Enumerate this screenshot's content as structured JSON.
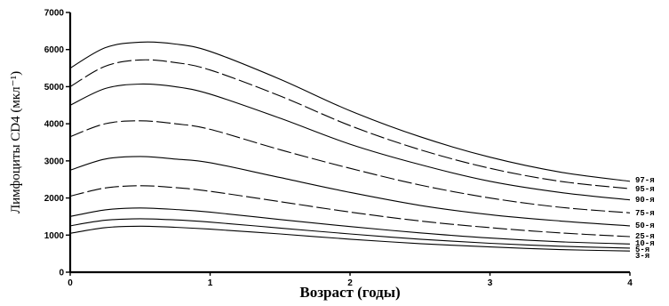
{
  "chart_data": {
    "type": "line",
    "xlabel": "Возраст (годы)",
    "ylabel": "Лимфоциты CD4 (мкл⁻¹)",
    "xlim": [
      0,
      4
    ],
    "ylim": [
      0,
      7000
    ],
    "xticks": [
      0,
      1,
      2,
      3,
      4
    ],
    "xtick_labels": [
      "0",
      "1",
      "2",
      "3",
      "4"
    ],
    "yticks": [
      0,
      1000,
      2000,
      3000,
      4000,
      5000,
      6000,
      7000
    ],
    "ytick_labels": [
      "0",
      "1000",
      "2000",
      "3000",
      "4000",
      "5000",
      "6000",
      "7000"
    ],
    "grid": false,
    "x": [
      0,
      0.25,
      0.5,
      0.75,
      1,
      1.5,
      2,
      2.5,
      3,
      3.5,
      4
    ],
    "series": [
      {
        "name": "97-я",
        "values": [
          5500,
          6050,
          6200,
          6150,
          5950,
          5200,
          4350,
          3650,
          3100,
          2700,
          2450
        ],
        "dash": "none"
      },
      {
        "name": "95-я",
        "values": [
          5000,
          5550,
          5720,
          5650,
          5450,
          4750,
          3950,
          3300,
          2800,
          2450,
          2250
        ],
        "dash": "16 4"
      },
      {
        "name": "90-я",
        "values": [
          4500,
          4950,
          5070,
          5000,
          4800,
          4150,
          3450,
          2900,
          2450,
          2150,
          1950
        ],
        "dash": "none"
      },
      {
        "name": "75-я",
        "values": [
          3650,
          4000,
          4080,
          4000,
          3850,
          3300,
          2800,
          2350,
          2000,
          1750,
          1600
        ],
        "dash": "16 4"
      },
      {
        "name": "50-я",
        "values": [
          2750,
          3050,
          3120,
          3050,
          2950,
          2550,
          2150,
          1800,
          1550,
          1380,
          1250
        ],
        "dash": "none"
      },
      {
        "name": "25-я",
        "values": [
          2050,
          2270,
          2330,
          2280,
          2180,
          1900,
          1620,
          1380,
          1200,
          1060,
          960
        ],
        "dash": "16 4"
      },
      {
        "name": "10-я",
        "values": [
          1500,
          1680,
          1730,
          1690,
          1620,
          1420,
          1230,
          1060,
          920,
          820,
          760
        ],
        "dash": "none"
      },
      {
        "name": "5-я",
        "values": [
          1250,
          1400,
          1440,
          1410,
          1350,
          1190,
          1030,
          890,
          780,
          700,
          650
        ],
        "dash": "none"
      },
      {
        "name": "3-я",
        "values": [
          1050,
          1200,
          1240,
          1210,
          1160,
          1030,
          890,
          770,
          680,
          610,
          570
        ],
        "dash": "none"
      }
    ]
  }
}
